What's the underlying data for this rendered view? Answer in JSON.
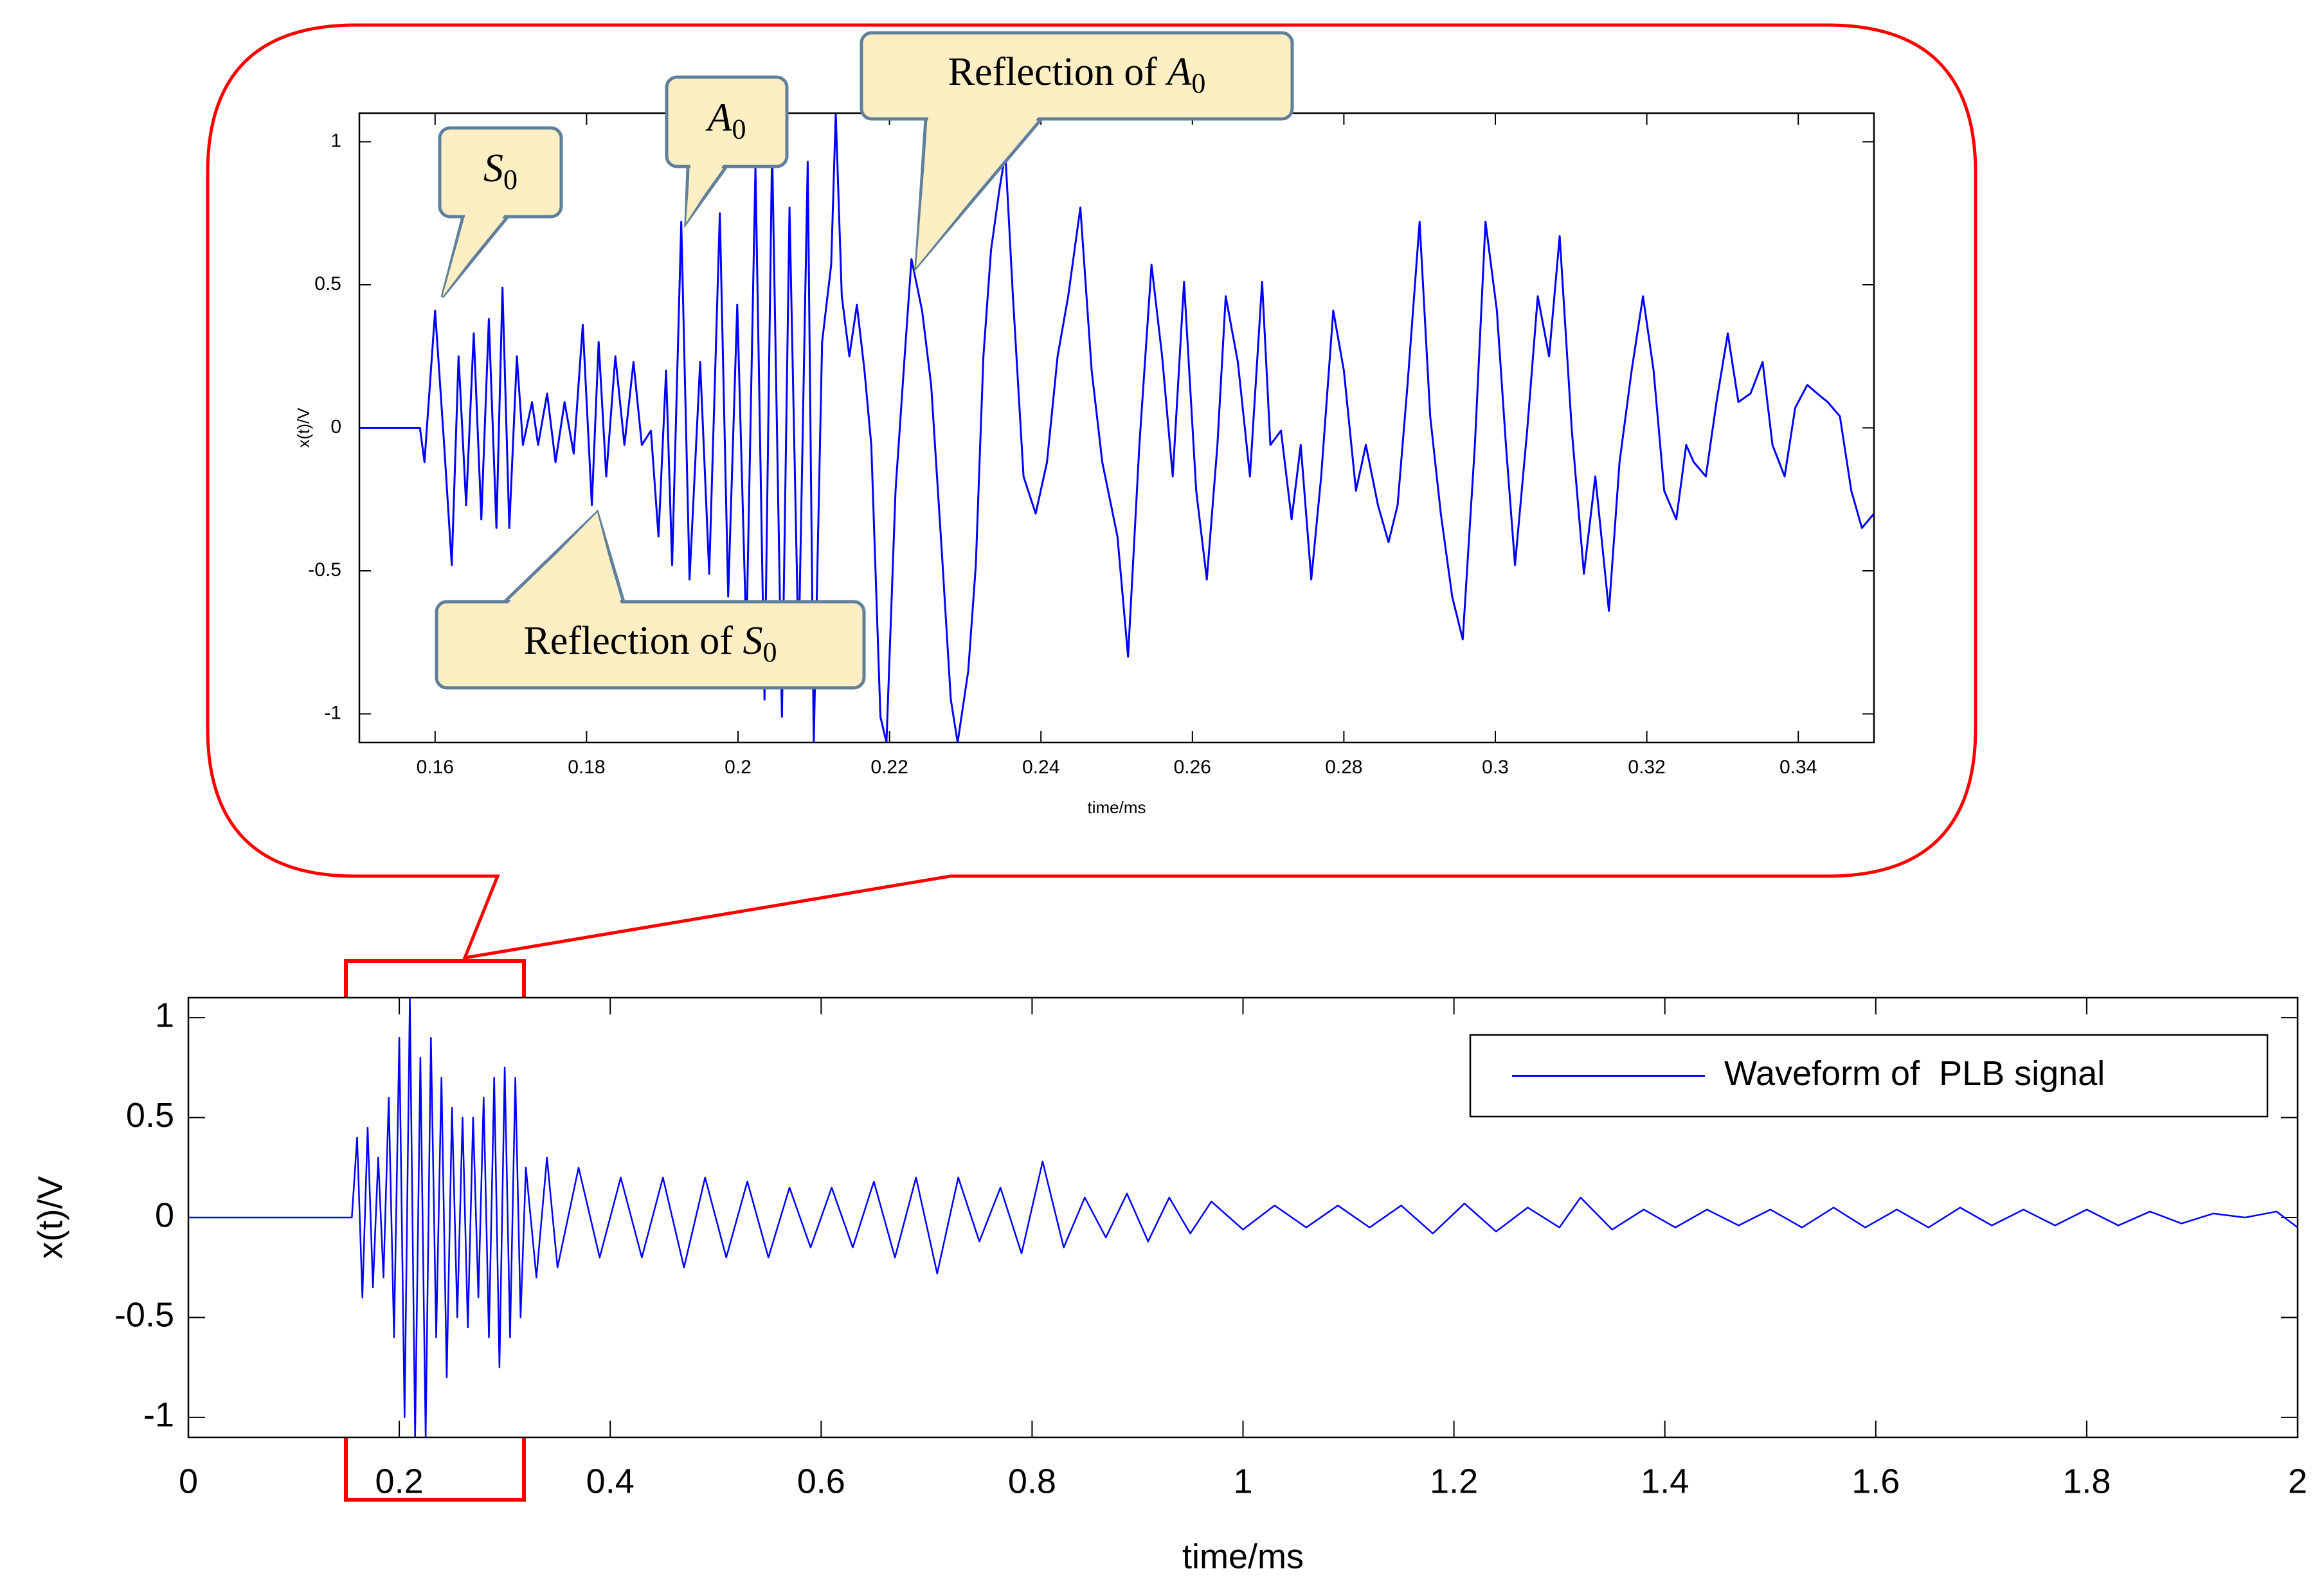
{
  "chart_data": [
    {
      "type": "line",
      "xlabel": "time/ms",
      "ylabel": "x(t)/V",
      "xlim": [
        0.15,
        0.35
      ],
      "ylim": [
        -1.1,
        1.1
      ],
      "xticks": [
        0.16,
        0.18,
        0.2,
        0.22,
        0.24,
        0.26,
        0.28,
        0.3,
        0.32,
        0.34
      ],
      "yticks": [
        -1,
        -0.5,
        0,
        0.5,
        1
      ],
      "grid": false,
      "series": [
        {
          "color": "#0000ff",
          "x": [
            0.15,
            0.158,
            0.1586,
            0.16,
            0.1612,
            0.1622,
            0.1631,
            0.1641,
            0.1651,
            0.1661,
            0.1671,
            0.1681,
            0.1689,
            0.1698,
            0.1708,
            0.1716,
            0.1728,
            0.1736,
            0.1748,
            0.1759,
            0.1771,
            0.1783,
            0.1795,
            0.1807,
            0.1816,
            0.1826,
            0.1838,
            0.185,
            0.1862,
            0.1873,
            0.1885,
            0.1895,
            0.1905,
            0.1913,
            0.1925,
            0.1936,
            0.195,
            0.1962,
            0.1976,
            0.1987,
            0.1999,
            0.2011,
            0.2023,
            0.2035,
            0.2045,
            0.2058,
            0.2068,
            0.208,
            0.2092,
            0.21,
            0.2111,
            0.2123,
            0.2129,
            0.2137,
            0.2147,
            0.2157,
            0.2167,
            0.2176,
            0.2188,
            0.2196,
            0.2208,
            0.222,
            0.2229,
            0.2243,
            0.2255,
            0.2269,
            0.2281,
            0.229,
            0.2304,
            0.2314,
            0.2324,
            0.2334,
            0.2345,
            0.2353,
            0.2363,
            0.2377,
            0.2393,
            0.2408,
            0.2422,
            0.2436,
            0.2452,
            0.2467,
            0.2481,
            0.2501,
            0.2515,
            0.253,
            0.2546,
            0.256,
            0.2574,
            0.2589,
            0.2605,
            0.2619,
            0.2633,
            0.2644,
            0.266,
            0.2676,
            0.2692,
            0.2703,
            0.2717,
            0.2731,
            0.2743,
            0.2757,
            0.277,
            0.2786,
            0.28,
            0.2816,
            0.2829,
            0.2845,
            0.2859,
            0.2871,
            0.2884,
            0.29,
            0.2914,
            0.2928,
            0.2943,
            0.2957,
            0.2973,
            0.2987,
            0.3002,
            0.3014,
            0.3026,
            0.3042,
            0.3056,
            0.3071,
            0.3085,
            0.3101,
            0.3117,
            0.3132,
            0.315,
            0.3164,
            0.318,
            0.3195,
            0.3209,
            0.3223,
            0.3239,
            0.3252,
            0.3262,
            0.3278,
            0.3292,
            0.3307,
            0.3321,
            0.3337,
            0.3353,
            0.3366,
            0.3382,
            0.3396,
            0.3412,
            0.3425,
            0.3439,
            0.3455,
            0.347,
            0.3484,
            0.35
          ],
          "values": [
            0,
            0,
            -0.12,
            0.41,
            -0.06,
            -0.48,
            0.25,
            -0.27,
            0.33,
            -0.32,
            0.38,
            -0.35,
            0.49,
            -0.35,
            0.25,
            -0.06,
            0.09,
            -0.06,
            0.12,
            -0.12,
            0.09,
            -0.09,
            0.36,
            -0.27,
            0.3,
            -0.17,
            0.25,
            -0.06,
            0.23,
            -0.06,
            -0.01,
            -0.38,
            0.2,
            -0.48,
            0.72,
            -0.53,
            0.23,
            -0.51,
            0.75,
            -0.59,
            0.43,
            -0.74,
            0.91,
            -0.95,
            0.98,
            -1.01,
            0.77,
            -0.8,
            0.93,
            -1.1,
            0.3,
            0.57,
            1.1,
            0.46,
            0.25,
            0.43,
            0.2,
            -0.06,
            -1.01,
            -1.1,
            -0.22,
            0.25,
            0.59,
            0.41,
            0.15,
            -0.43,
            -0.95,
            -1.1,
            -0.85,
            -0.48,
            0.25,
            0.62,
            0.83,
            0.96,
            0.46,
            -0.17,
            -0.3,
            -0.12,
            0.25,
            0.46,
            0.77,
            0.2,
            -0.12,
            -0.38,
            -0.8,
            -0.06,
            0.57,
            0.25,
            -0.17,
            0.51,
            -0.22,
            -0.53,
            -0.06,
            0.46,
            0.23,
            -0.17,
            0.51,
            -0.06,
            -0.01,
            -0.32,
            -0.06,
            -0.53,
            -0.17,
            0.41,
            0.2,
            -0.22,
            -0.06,
            -0.27,
            -0.4,
            -0.27,
            0.15,
            0.72,
            0.04,
            -0.3,
            -0.59,
            -0.74,
            -0.06,
            0.72,
            0.41,
            -0.06,
            -0.48,
            -0.01,
            0.46,
            0.25,
            0.67,
            -0.01,
            -0.51,
            -0.17,
            -0.64,
            -0.12,
            0.2,
            0.46,
            0.2,
            -0.22,
            -0.32,
            -0.06,
            -0.12,
            -0.17,
            0.09,
            0.33,
            0.09,
            0.12,
            0.23,
            -0.06,
            -0.17,
            0.07,
            0.15,
            0.12,
            0.09,
            0.04,
            -0.22,
            -0.35,
            -0.3
          ]
        }
      ],
      "annotations": [
        {
          "symbol": "S",
          "subscript": "0"
        },
        {
          "symbol": "A",
          "subscript": "0"
        },
        {
          "prefix": "Reflection of ",
          "symbol": "A",
          "subscript": "0"
        },
        {
          "prefix": "Reflection of ",
          "symbol": "S",
          "subscript": "0"
        }
      ]
    },
    {
      "type": "line",
      "xlabel": "time/ms",
      "ylabel": "x(t)/V",
      "xlim": [
        0,
        2
      ],
      "ylim": [
        -1.1,
        1.1
      ],
      "xticks": [
        0,
        0.2,
        0.4,
        0.6,
        0.8,
        1,
        1.2,
        1.4,
        1.6,
        1.8,
        2
      ],
      "yticks": [
        -1,
        -0.5,
        0,
        0.5,
        1
      ],
      "grid": false,
      "legend": "upper right",
      "series": [
        {
          "name": "Waveform of  PLB signal",
          "color": "#0000ff",
          "x": [
            0,
            0.155,
            0.16,
            0.165,
            0.17,
            0.175,
            0.18,
            0.185,
            0.19,
            0.195,
            0.2,
            0.205,
            0.21,
            0.215,
            0.22,
            0.225,
            0.23,
            0.235,
            0.24,
            0.245,
            0.25,
            0.255,
            0.26,
            0.265,
            0.27,
            0.275,
            0.28,
            0.285,
            0.29,
            0.295,
            0.3,
            0.305,
            0.31,
            0.315,
            0.32,
            0.33,
            0.34,
            0.35,
            0.37,
            0.39,
            0.41,
            0.43,
            0.45,
            0.47,
            0.49,
            0.51,
            0.53,
            0.55,
            0.57,
            0.59,
            0.61,
            0.63,
            0.65,
            0.67,
            0.69,
            0.71,
            0.73,
            0.75,
            0.77,
            0.79,
            0.81,
            0.83,
            0.85,
            0.87,
            0.89,
            0.91,
            0.93,
            0.95,
            0.97,
            1.0,
            1.03,
            1.06,
            1.09,
            1.12,
            1.15,
            1.18,
            1.21,
            1.24,
            1.27,
            1.3,
            1.32,
            1.35,
            1.38,
            1.41,
            1.44,
            1.47,
            1.5,
            1.53,
            1.56,
            1.59,
            1.62,
            1.65,
            1.68,
            1.71,
            1.74,
            1.77,
            1.8,
            1.83,
            1.86,
            1.89,
            1.92,
            1.95,
            1.98,
            2.0
          ],
          "values": [
            0,
            0,
            0.4,
            -0.4,
            0.45,
            -0.35,
            0.3,
            -0.3,
            0.6,
            -0.6,
            0.9,
            -1.0,
            1.1,
            -1.1,
            0.8,
            -1.1,
            0.9,
            -0.6,
            0.7,
            -0.8,
            0.55,
            -0.5,
            0.5,
            -0.55,
            0.5,
            -0.4,
            0.6,
            -0.6,
            0.7,
            -0.75,
            0.75,
            -0.6,
            0.7,
            -0.5,
            0.25,
            -0.3,
            0.3,
            -0.25,
            0.25,
            -0.2,
            0.2,
            -0.2,
            0.2,
            -0.25,
            0.2,
            -0.2,
            0.18,
            -0.2,
            0.15,
            -0.15,
            0.15,
            -0.15,
            0.18,
            -0.2,
            0.2,
            -0.28,
            0.2,
            -0.12,
            0.15,
            -0.18,
            0.28,
            -0.15,
            0.1,
            -0.1,
            0.12,
            -0.12,
            0.1,
            -0.08,
            0.08,
            -0.06,
            0.06,
            -0.05,
            0.06,
            -0.05,
            0.06,
            -0.08,
            0.07,
            -0.07,
            0.05,
            -0.05,
            0.1,
            -0.06,
            0.04,
            -0.05,
            0.04,
            -0.04,
            0.04,
            -0.05,
            0.05,
            -0.05,
            0.04,
            -0.05,
            0.05,
            -0.04,
            0.04,
            -0.04,
            0.04,
            -0.04,
            0.03,
            -0.03,
            0.02,
            0.0,
            0.03,
            -0.05
          ]
        }
      ]
    }
  ]
}
